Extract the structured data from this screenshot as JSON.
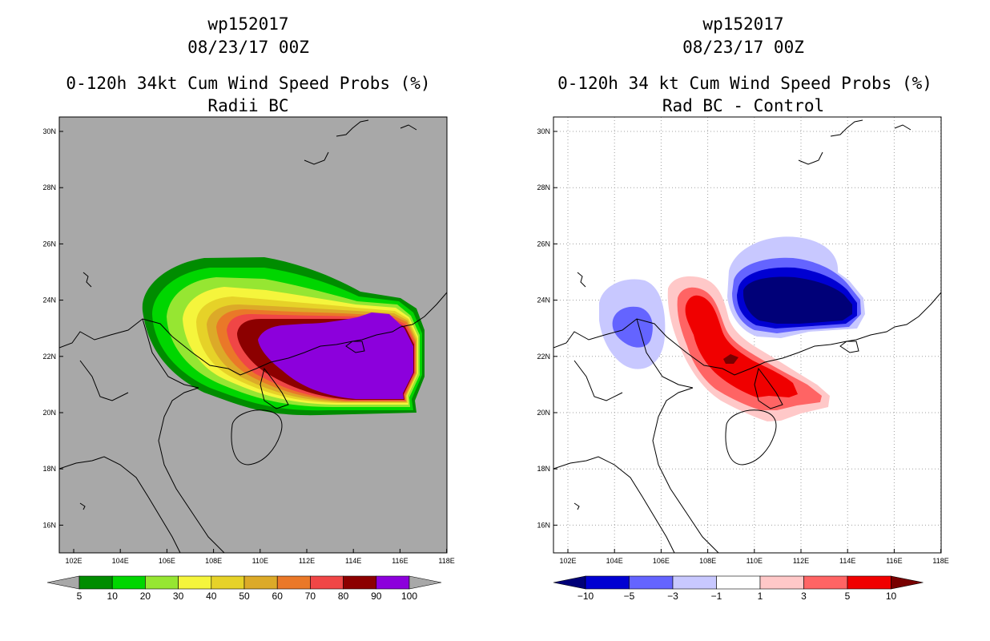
{
  "left": {
    "title_id": "wp152017",
    "title_date": "08/23/17 00Z",
    "title_main": "0-120h 34kt Cum Wind Speed Probs (%)",
    "title_sub": "Radii BC",
    "lat_labels": [
      "30N",
      "28N",
      "26N",
      "24N",
      "22N",
      "20N",
      "18N",
      "16N"
    ],
    "lon_labels": [
      "102E",
      "104E",
      "106E",
      "108E",
      "110E",
      "112E",
      "114E",
      "116E",
      "118E"
    ],
    "colorbar": {
      "labels": [
        "5",
        "10",
        "20",
        "30",
        "40",
        "50",
        "60",
        "70",
        "80",
        "90",
        "100"
      ],
      "colors": [
        "#008c00",
        "#00d600",
        "#96e632",
        "#f5f53c",
        "#e6d228",
        "#dcaa28",
        "#ea7828",
        "#f04646",
        "#8c0000",
        "#8c00dc"
      ],
      "under_color": "#a8a8a8",
      "over_color": "#a8a8a8"
    },
    "background_color": "#a8a8a8"
  },
  "right": {
    "title_id": "wp152017",
    "title_date": "08/23/17 00Z",
    "title_main": "0-120h 34 kt Cum Wind Speed Probs (%)",
    "title_sub": "Rad BC - Control",
    "lat_labels": [
      "30N",
      "28N",
      "26N",
      "24N",
      "22N",
      "20N",
      "18N",
      "16N"
    ],
    "lon_labels": [
      "102E",
      "104E",
      "106E",
      "108E",
      "110E",
      "112E",
      "114E",
      "116E",
      "118E"
    ],
    "colorbar": {
      "labels": [
        "−10",
        "−5",
        "−3",
        "−1",
        "1",
        "3",
        "5",
        "10"
      ],
      "colors": [
        "#0000d2",
        "#6464ff",
        "#c8c8ff",
        "#ffffff",
        "#ffc8c8",
        "#ff6464",
        "#f00000"
      ],
      "under_color": "#000078",
      "over_color": "#780000"
    }
  }
}
